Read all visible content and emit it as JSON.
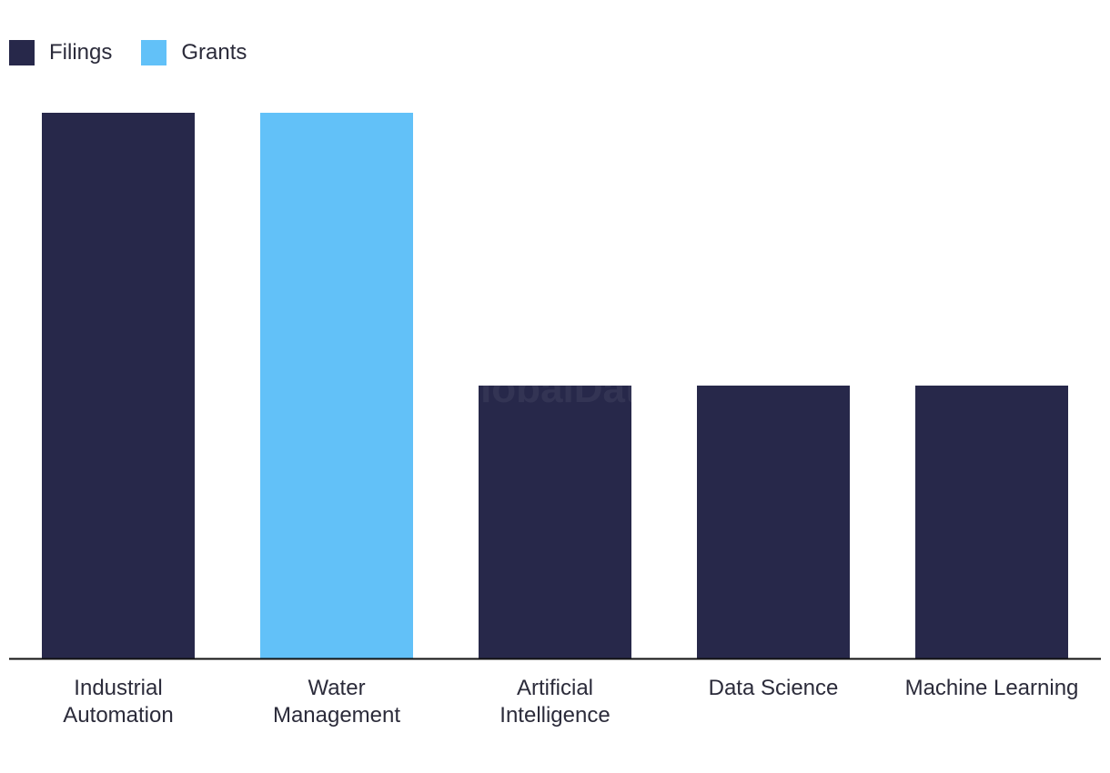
{
  "legend": {
    "filings_label": "Filings",
    "grants_label": "Grants"
  },
  "watermark": "GlobalData",
  "colors": {
    "filings": "#27284a",
    "grants": "#62c1f8",
    "axis": "#111111",
    "text": "#2b2b3a"
  },
  "chart_data": {
    "type": "bar",
    "categories": [
      [
        "Industrial",
        "Automation"
      ],
      [
        "Water",
        "Management"
      ],
      [
        "Artificial",
        "Intelligence"
      ],
      [
        "Data Science"
      ],
      [
        "Machine Learning"
      ]
    ],
    "series_of_bar": [
      "Filings",
      "Grants",
      "Filings",
      "Filings",
      "Filings"
    ],
    "values": [
      2,
      2,
      1,
      1,
      1
    ],
    "ylim": [
      0,
      2
    ],
    "title": "",
    "xlabel": "",
    "ylabel": "",
    "grid": false,
    "legend_position": "top-left"
  }
}
